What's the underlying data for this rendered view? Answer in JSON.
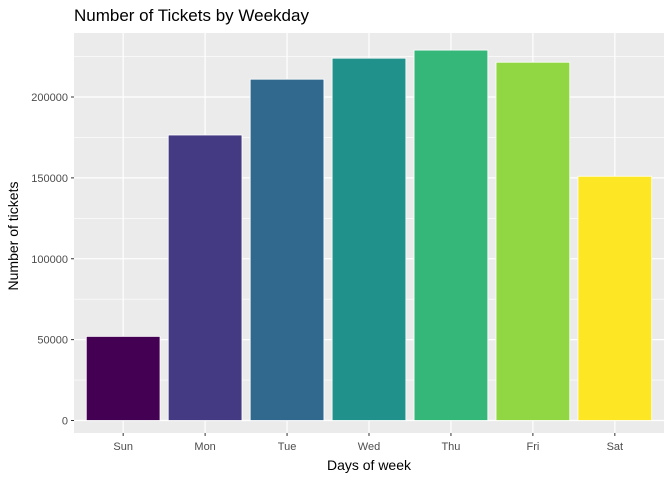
{
  "chart_data": {
    "type": "bar",
    "title": "Number of Tickets by Weekday",
    "xlabel": "Days of week",
    "ylabel": "Number of tickets",
    "categories": [
      "Sun",
      "Mon",
      "Tue",
      "Wed",
      "Thu",
      "Fri",
      "Sat"
    ],
    "values": [
      52000,
      176500,
      211000,
      224000,
      229000,
      221500,
      151000
    ],
    "colors": [
      "#440154",
      "#443983",
      "#31688E",
      "#21918C",
      "#35B779",
      "#90D743",
      "#FDE725"
    ],
    "ylim": [
      0,
      240000
    ],
    "yticks": [
      0,
      50000,
      100000,
      150000,
      200000
    ],
    "ytick_labels": [
      "0",
      "50000",
      "100000",
      "150000",
      "200000"
    ],
    "grid": true,
    "legend": "none",
    "panel_background": "#EBEBEB",
    "grid_color": "#FFFFFF"
  }
}
